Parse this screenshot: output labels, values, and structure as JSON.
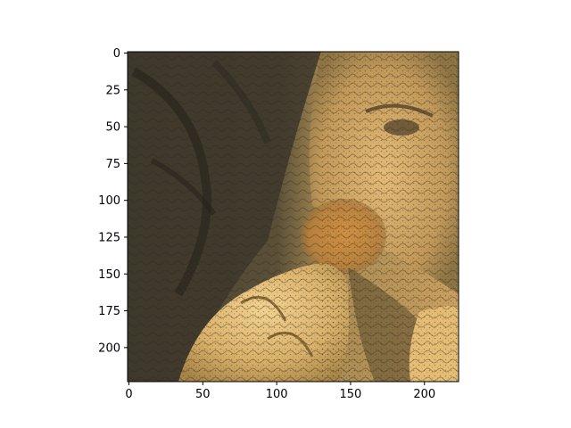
{
  "chart_data": {
    "type": "heatmap",
    "description_of_image": "matplotlib imshow of a stylized texture image (elephant-skin style transfer of a face and hand), 224x224 pixels",
    "xlim": [
      0,
      224
    ],
    "ylim": [
      224,
      0
    ],
    "x_ticks": [
      0,
      50,
      100,
      150,
      200
    ],
    "y_ticks": [
      0,
      25,
      50,
      75,
      100,
      125,
      150,
      175,
      200
    ],
    "x_tick_labels": [
      "0",
      "50",
      "100",
      "150",
      "200"
    ],
    "y_tick_labels": [
      "0",
      "25",
      "50",
      "75",
      "100",
      "125",
      "150",
      "175",
      "200"
    ],
    "grid": false,
    "title": "",
    "xlabel": "",
    "ylabel": ""
  },
  "colors": {
    "dark_skin": "#3f3a30",
    "mid_skin": "#6e6145",
    "light_skin": "#d8b06a",
    "highlight": "#f0c878",
    "orange_blob": "#c98a3a",
    "deep_shadow": "#23201a"
  }
}
